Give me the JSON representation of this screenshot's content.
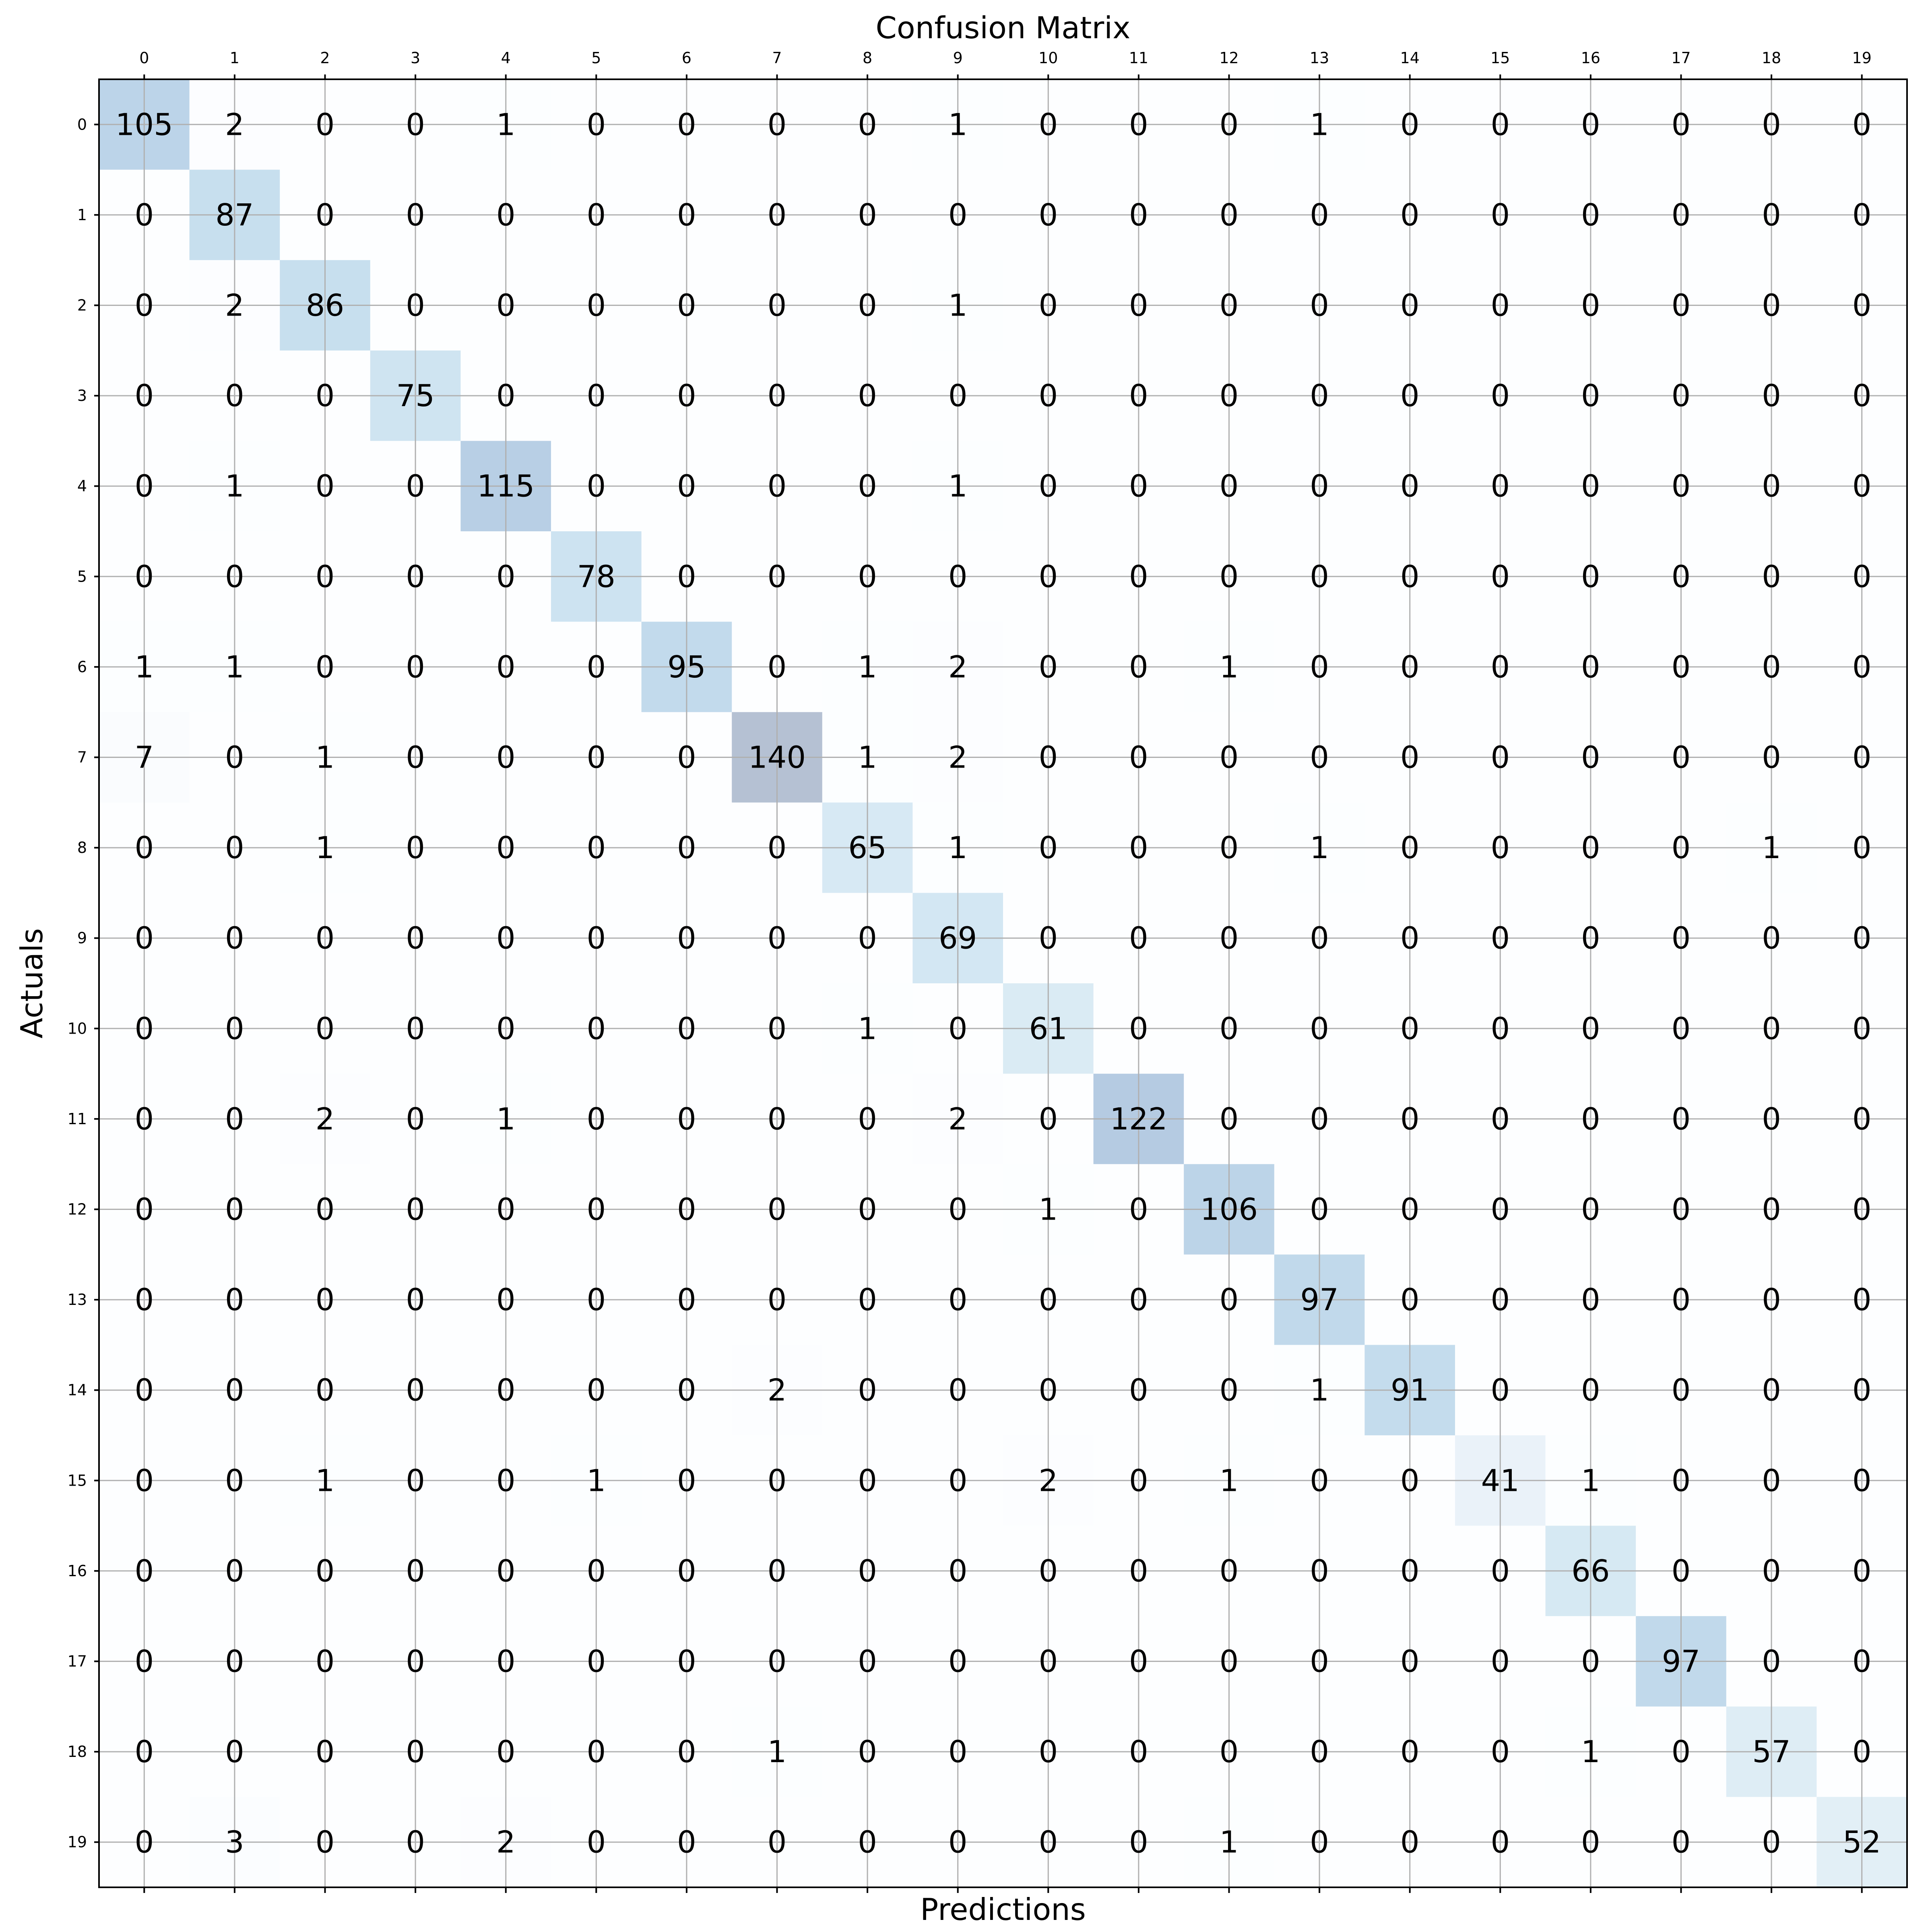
{
  "chart_data": {
    "type": "heatmap",
    "title": "Confusion Matrix",
    "xlabel": "Predictions",
    "ylabel": "Actuals",
    "x_tick_position": "top",
    "grid": true,
    "colormap": "Blues",
    "x_categories": [
      "0",
      "1",
      "2",
      "3",
      "4",
      "5",
      "6",
      "7",
      "8",
      "9",
      "10",
      "11",
      "12",
      "13",
      "14",
      "15",
      "16",
      "17",
      "18",
      "19"
    ],
    "y_categories": [
      "0",
      "1",
      "2",
      "3",
      "4",
      "5",
      "6",
      "7",
      "8",
      "9",
      "10",
      "11",
      "12",
      "13",
      "14",
      "15",
      "16",
      "17",
      "18",
      "19"
    ],
    "matrix": [
      [
        105,
        2,
        0,
        0,
        1,
        0,
        0,
        0,
        0,
        1,
        0,
        0,
        0,
        1,
        0,
        0,
        0,
        0,
        0,
        0
      ],
      [
        0,
        87,
        0,
        0,
        0,
        0,
        0,
        0,
        0,
        0,
        0,
        0,
        0,
        0,
        0,
        0,
        0,
        0,
        0,
        0
      ],
      [
        0,
        2,
        86,
        0,
        0,
        0,
        0,
        0,
        0,
        1,
        0,
        0,
        0,
        0,
        0,
        0,
        0,
        0,
        0,
        0
      ],
      [
        0,
        0,
        0,
        75,
        0,
        0,
        0,
        0,
        0,
        0,
        0,
        0,
        0,
        0,
        0,
        0,
        0,
        0,
        0,
        0
      ],
      [
        0,
        1,
        0,
        0,
        115,
        0,
        0,
        0,
        0,
        1,
        0,
        0,
        0,
        0,
        0,
        0,
        0,
        0,
        0,
        0
      ],
      [
        0,
        0,
        0,
        0,
        0,
        78,
        0,
        0,
        0,
        0,
        0,
        0,
        0,
        0,
        0,
        0,
        0,
        0,
        0,
        0
      ],
      [
        1,
        1,
        0,
        0,
        0,
        0,
        95,
        0,
        1,
        2,
        0,
        0,
        1,
        0,
        0,
        0,
        0,
        0,
        0,
        0
      ],
      [
        7,
        0,
        1,
        0,
        0,
        0,
        0,
        140,
        1,
        2,
        0,
        0,
        0,
        0,
        0,
        0,
        0,
        0,
        0,
        0
      ],
      [
        0,
        0,
        1,
        0,
        0,
        0,
        0,
        0,
        65,
        1,
        0,
        0,
        0,
        1,
        0,
        0,
        0,
        0,
        1,
        0
      ],
      [
        0,
        0,
        0,
        0,
        0,
        0,
        0,
        0,
        0,
        69,
        0,
        0,
        0,
        0,
        0,
        0,
        0,
        0,
        0,
        0
      ],
      [
        0,
        0,
        0,
        0,
        0,
        0,
        0,
        0,
        1,
        0,
        61,
        0,
        0,
        0,
        0,
        0,
        0,
        0,
        0,
        0
      ],
      [
        0,
        0,
        2,
        0,
        1,
        0,
        0,
        0,
        0,
        2,
        0,
        122,
        0,
        0,
        0,
        0,
        0,
        0,
        0,
        0
      ],
      [
        0,
        0,
        0,
        0,
        0,
        0,
        0,
        0,
        0,
        0,
        1,
        0,
        106,
        0,
        0,
        0,
        0,
        0,
        0,
        0
      ],
      [
        0,
        0,
        0,
        0,
        0,
        0,
        0,
        0,
        0,
        0,
        0,
        0,
        0,
        97,
        0,
        0,
        0,
        0,
        0,
        0
      ],
      [
        0,
        0,
        0,
        0,
        0,
        0,
        0,
        2,
        0,
        0,
        0,
        0,
        0,
        1,
        91,
        0,
        0,
        0,
        0,
        0
      ],
      [
        0,
        0,
        1,
        0,
        0,
        1,
        0,
        0,
        0,
        0,
        2,
        0,
        1,
        0,
        0,
        41,
        1,
        0,
        0,
        0
      ],
      [
        0,
        0,
        0,
        0,
        0,
        0,
        0,
        0,
        0,
        0,
        0,
        0,
        0,
        0,
        0,
        0,
        66,
        0,
        0,
        0
      ],
      [
        0,
        0,
        0,
        0,
        0,
        0,
        0,
        0,
        0,
        0,
        0,
        0,
        0,
        0,
        0,
        0,
        0,
        97,
        0,
        0
      ],
      [
        0,
        0,
        0,
        0,
        0,
        0,
        0,
        1,
        0,
        0,
        0,
        0,
        0,
        0,
        0,
        0,
        1,
        0,
        57,
        0
      ],
      [
        0,
        3,
        0,
        0,
        2,
        0,
        0,
        0,
        0,
        0,
        0,
        0,
        1,
        0,
        0,
        0,
        0,
        0,
        0,
        52
      ]
    ],
    "value_range": [
      0,
      140
    ]
  }
}
